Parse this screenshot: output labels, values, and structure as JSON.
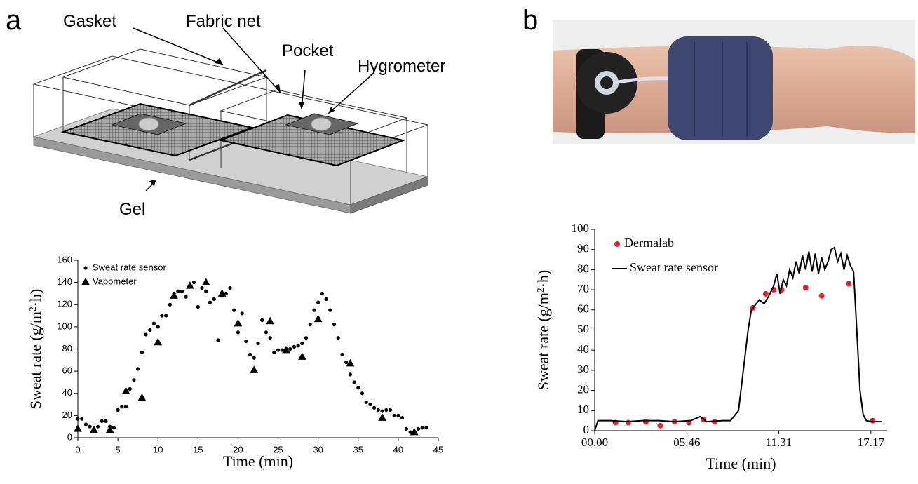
{
  "panels": [
    {
      "label": "a"
    },
    {
      "label": "b"
    }
  ],
  "diagram": {
    "labels": [
      "Gasket",
      "Fabric net",
      "Pocket",
      "Hygrometer",
      "Gel"
    ]
  },
  "chart_data": [
    {
      "type": "scatter",
      "xlabel": "Time (min)",
      "ylabel": [
        "Sweat rate (g/m",
        "2",
        "·h)"
      ],
      "xlim": [
        0,
        45
      ],
      "xticks": [
        0,
        5,
        10,
        15,
        20,
        25,
        30,
        35,
        40,
        45
      ],
      "ylim": [
        0,
        160
      ],
      "yticks": [
        0,
        20,
        40,
        60,
        80,
        100,
        120,
        140,
        160
      ],
      "legend": "upper left",
      "series": [
        {
          "name": "Sweat rate sensor",
          "color": "#000000",
          "marker": "circle",
          "x": [
            0,
            0.5,
            1,
            1.5,
            2,
            2.5,
            3,
            3.5,
            4,
            4.5,
            5,
            5.5,
            6,
            6.5,
            7,
            7.5,
            8,
            8.5,
            9,
            9.5,
            10,
            10.5,
            11,
            11.5,
            12,
            12.5,
            13,
            13.5,
            14,
            14.5,
            15,
            15.5,
            16,
            16.5,
            17,
            17.5,
            18,
            18.5,
            19,
            19.5,
            20,
            20.5,
            21,
            21.5,
            22,
            22.5,
            23,
            23.5,
            24,
            24.5,
            25,
            25.5,
            26,
            26.5,
            27,
            27.5,
            28,
            28.5,
            29,
            29.5,
            30,
            30.5,
            31,
            31.5,
            32,
            32.5,
            33,
            33.5,
            34,
            34.5,
            35,
            35.5,
            36,
            36.5,
            37,
            37.5,
            38,
            38.5,
            39,
            39.5,
            40,
            40.5,
            41,
            41.5,
            42,
            42.5,
            43,
            43.5
          ],
          "values": [
            17,
            17,
            12,
            10,
            8,
            10,
            15,
            15,
            10,
            9,
            25,
            28,
            28,
            44,
            52,
            62,
            77,
            93,
            97,
            103,
            100,
            110,
            110,
            120,
            130,
            132,
            132,
            127,
            137,
            140,
            118,
            135,
            132,
            122,
            125,
            88,
            128,
            130,
            135,
            115,
            95,
            112,
            87,
            75,
            72,
            85,
            106,
            95,
            90,
            77,
            79,
            79,
            80,
            80,
            82,
            83,
            85,
            90,
            102,
            115,
            122,
            130,
            125,
            115,
            102,
            90,
            75,
            68,
            57,
            50,
            45,
            40,
            32,
            30,
            27,
            25,
            24,
            25,
            25,
            20,
            20,
            18,
            8,
            5,
            5,
            8,
            9,
            9
          ]
        },
        {
          "name": "Vapometer",
          "color": "#000000",
          "marker": "triangle",
          "x": [
            0,
            2,
            4,
            6,
            8,
            10,
            12,
            14,
            16,
            18,
            20,
            22,
            24,
            26,
            28,
            30,
            34,
            38,
            42
          ],
          "values": [
            8,
            7,
            7,
            42,
            36,
            86,
            128,
            137,
            140,
            130,
            103,
            61,
            105,
            79,
            73,
            107,
            67,
            18,
            5
          ]
        }
      ]
    },
    {
      "type": "line",
      "xlabel": "Time (min)",
      "ylabel": [
        "Sweat rate (g/m",
        "2",
        "·h)"
      ],
      "xlim": [
        0,
        18.3
      ],
      "xticks": [
        {
          "value": 0,
          "label": "00.00"
        },
        {
          "value": 5.767,
          "label": "05.46"
        },
        {
          "value": 11.517,
          "label": "11.31"
        },
        {
          "value": 17.283,
          "label": "17.17"
        }
      ],
      "ylim": [
        0,
        100
      ],
      "yticks": [
        0,
        10,
        20,
        30,
        40,
        50,
        60,
        70,
        80,
        90,
        100
      ],
      "legend": "upper left",
      "series": [
        {
          "name": "Dermalab",
          "color": "#e8262a",
          "marker": "circle",
          "x": [
            1.3,
            2.1,
            3.2,
            4.1,
            5,
            5.9,
            6.8,
            7.5,
            9.9,
            10.7,
            11.2,
            11.7,
            13.2,
            14.2,
            15.9,
            17.4
          ],
          "values": [
            4,
            4,
            4.5,
            2.5,
            4.5,
            4,
            5.5,
            4.5,
            61,
            68,
            70,
            70,
            71,
            67,
            73,
            5
          ]
        },
        {
          "name": "Sweat rate sensor",
          "color": "#000000",
          "marker": "line",
          "x": [
            0,
            0.2,
            1,
            2,
            3,
            4,
            5,
            6,
            6.6,
            7,
            8,
            8.5,
            9,
            9.3,
            9.6,
            9.8,
            10,
            10.3,
            10.6,
            10.9,
            11.2,
            11.4,
            11.6,
            11.8,
            12,
            12.2,
            12.4,
            12.6,
            12.8,
            13,
            13.2,
            13.4,
            13.6,
            13.8,
            14,
            14.2,
            14.4,
            14.6,
            14.8,
            15,
            15.2,
            15.4,
            15.6,
            15.8,
            16,
            16.2,
            16.4,
            16.6,
            16.8,
            17,
            17.3,
            18
          ],
          "values": [
            0,
            5,
            5,
            4.5,
            5,
            5,
            4.5,
            5,
            7,
            4.5,
            5,
            5,
            10,
            30,
            50,
            60,
            62,
            65,
            63,
            67,
            72,
            78,
            68,
            75,
            72,
            80,
            76,
            84,
            78,
            87,
            80,
            89,
            79,
            88,
            78,
            86,
            80,
            84,
            90,
            91,
            84,
            88,
            80,
            87,
            82,
            79,
            50,
            20,
            8,
            5,
            4.5,
            4.5
          ]
        }
      ]
    }
  ]
}
